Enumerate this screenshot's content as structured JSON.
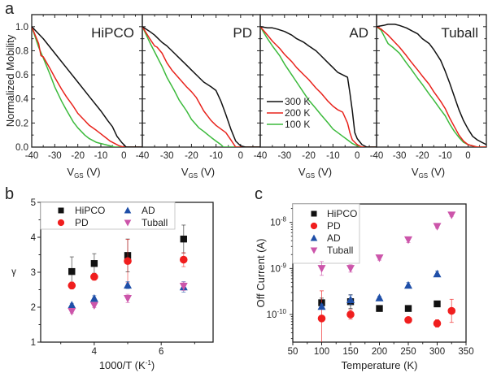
{
  "figure": {
    "panels": [
      "a",
      "b",
      "c"
    ]
  },
  "chart_data": [
    {
      "panel": "a",
      "type": "line",
      "ylabel": "Normalized Mobility",
      "ylim": [
        0,
        1.1
      ],
      "yticks": [
        "0.0",
        "0.2",
        "0.4",
        "0.6",
        "0.8",
        "1.0"
      ],
      "subplots": [
        {
          "title": "HiPCO",
          "xlabel_main": "V",
          "xlabel_sub": "GS",
          "xlabel_unit": "(V)",
          "xlim": [
            -40,
            8
          ],
          "xticks": [
            "-40",
            "-30",
            "-20",
            "-10",
            "0"
          ],
          "series": [
            {
              "name": "300 K",
              "color": "#111111",
              "x": [
                -40,
                -35,
                -30,
                -25,
                -20,
                -15,
                -10,
                -7,
                -5,
                -3,
                -1,
                0,
                1,
                3,
                8
              ],
              "y": [
                1.0,
                0.9,
                0.78,
                0.66,
                0.54,
                0.42,
                0.3,
                0.22,
                0.17,
                0.09,
                0.04,
                0.02,
                0.0,
                0.0,
                0.0
              ]
            },
            {
              "name": "200 K",
              "color": "#e8231c",
              "x": [
                -40,
                -37,
                -36,
                -35,
                -32,
                -30,
                -27,
                -25,
                -22,
                -20,
                -17,
                -15,
                -12,
                -10,
                -8,
                -6,
                -4,
                -2,
                0,
                8
              ],
              "y": [
                1.0,
                0.86,
                0.76,
                0.75,
                0.65,
                0.58,
                0.48,
                0.42,
                0.34,
                0.28,
                0.22,
                0.18,
                0.14,
                0.11,
                0.08,
                0.05,
                0.03,
                0.01,
                0.0,
                0.0
              ]
            },
            {
              "name": "100 K",
              "color": "#3cba3c",
              "x": [
                -40,
                -37,
                -35,
                -32,
                -30,
                -27,
                -25,
                -22,
                -20,
                -17,
                -15,
                -12,
                -10,
                -8,
                -6,
                -4,
                0,
                8
              ],
              "y": [
                1.0,
                0.83,
                0.74,
                0.6,
                0.5,
                0.38,
                0.31,
                0.21,
                0.16,
                0.1,
                0.07,
                0.04,
                0.03,
                0.02,
                0.01,
                0.0,
                0.0,
                0.0
              ]
            }
          ]
        },
        {
          "title": "PD",
          "xlabel_main": "V",
          "xlabel_sub": "GS",
          "xlabel_unit": "(V)",
          "xlim": [
            -40,
            8
          ],
          "xticks": [
            "-40",
            "-30",
            "-20",
            "-10",
            "0"
          ],
          "series": [
            {
              "name": "300 K",
              "color": "#111111",
              "x": [
                -40,
                -37,
                -35,
                -32,
                -30,
                -27,
                -25,
                -22,
                -20,
                -17,
                -15,
                -12,
                -10,
                -8,
                -6,
                -4,
                -2,
                0,
                2,
                8
              ],
              "y": [
                1.0,
                0.96,
                0.93,
                0.87,
                0.84,
                0.78,
                0.74,
                0.68,
                0.64,
                0.58,
                0.54,
                0.5,
                0.47,
                0.38,
                0.27,
                0.15,
                0.05,
                0.01,
                0.0,
                0.0
              ]
            },
            {
              "name": "200 K",
              "color": "#e8231c",
              "x": [
                -40,
                -37,
                -35,
                -34,
                -32,
                -30,
                -28,
                -25,
                -22,
                -20,
                -18,
                -15,
                -12,
                -10,
                -8,
                -6,
                -4,
                -3,
                -2,
                0,
                8
              ],
              "y": [
                1.0,
                0.9,
                0.84,
                0.83,
                0.78,
                0.7,
                0.64,
                0.57,
                0.5,
                0.46,
                0.41,
                0.3,
                0.22,
                0.18,
                0.15,
                0.12,
                0.06,
                0.03,
                0.0,
                0.0,
                0.0
              ]
            },
            {
              "name": "100 K",
              "color": "#3cba3c",
              "x": [
                -40,
                -37,
                -35,
                -32,
                -30,
                -27,
                -25,
                -22,
                -20,
                -17,
                -15,
                -12,
                -10,
                -8,
                -7,
                8
              ],
              "y": [
                1.0,
                0.87,
                0.79,
                0.67,
                0.58,
                0.47,
                0.39,
                0.3,
                0.23,
                0.16,
                0.13,
                0.08,
                0.05,
                0.02,
                0.0,
                0.0
              ]
            }
          ]
        },
        {
          "title": "AD",
          "xlabel_main": "V",
          "xlabel_sub": "GS",
          "xlabel_unit": "(V)",
          "xlim": [
            -40,
            8
          ],
          "xticks": [
            "-40",
            "-30",
            "-20",
            "-10",
            "0"
          ],
          "series": [
            {
              "name": "300 K",
              "color": "#111111",
              "x": [
                -40,
                -37,
                -35,
                -33,
                -30,
                -27,
                -25,
                -22,
                -20,
                -17,
                -15,
                -12,
                -10,
                -8,
                -6,
                -4,
                -3,
                -2,
                -1,
                0,
                2,
                4,
                5,
                8
              ],
              "y": [
                1.0,
                0.99,
                0.99,
                0.98,
                0.96,
                0.93,
                0.9,
                0.87,
                0.84,
                0.8,
                0.76,
                0.7,
                0.66,
                0.62,
                0.6,
                0.58,
                0.45,
                0.3,
                0.12,
                0.07,
                0.02,
                0.0,
                0.0,
                0.0
              ]
            },
            {
              "name": "200 K",
              "color": "#e8231c",
              "x": [
                -40,
                -37,
                -35,
                -32,
                -30,
                -27,
                -25,
                -22,
                -20,
                -17,
                -15,
                -12,
                -10,
                -8,
                -6,
                -4,
                -3,
                -2,
                0,
                2,
                3,
                8
              ],
              "y": [
                1.0,
                0.93,
                0.88,
                0.82,
                0.77,
                0.71,
                0.66,
                0.6,
                0.56,
                0.49,
                0.45,
                0.38,
                0.34,
                0.31,
                0.29,
                0.2,
                0.12,
                0.06,
                0.02,
                0.0,
                0.0,
                0.0
              ]
            },
            {
              "name": "100 K",
              "color": "#3cba3c",
              "x": [
                -40,
                -37,
                -35,
                -32,
                -30,
                -27,
                -25,
                -22,
                -20,
                -17,
                -15,
                -12,
                -10,
                -8,
                -6,
                -4,
                -2,
                0,
                2,
                8
              ],
              "y": [
                1.0,
                0.9,
                0.84,
                0.76,
                0.69,
                0.6,
                0.54,
                0.45,
                0.39,
                0.32,
                0.27,
                0.2,
                0.15,
                0.12,
                0.09,
                0.06,
                0.03,
                0.01,
                0.0,
                0.0
              ]
            }
          ],
          "legend": {
            "position": "lower-left",
            "entries": [
              "300 K",
              "200 K",
              "100 K"
            ]
          }
        },
        {
          "title": "Tuball",
          "xlabel_main": "V",
          "xlabel_sub": "GS",
          "xlabel_unit": "(V)",
          "xlim": [
            -40,
            8
          ],
          "xticks": [
            "-40",
            "-30",
            "-20",
            "-10",
            "0"
          ],
          "series": [
            {
              "name": "300 K",
              "color": "#111111",
              "x": [
                -40,
                -37,
                -35,
                -32,
                -30,
                -27,
                -25,
                -22,
                -20,
                -17,
                -15,
                -12,
                -10,
                -8,
                -6,
                -4,
                -2,
                0,
                2,
                4,
                6,
                8
              ],
              "y": [
                1.0,
                1.01,
                1.02,
                1.02,
                1.01,
                0.99,
                0.97,
                0.94,
                0.9,
                0.86,
                0.81,
                0.72,
                0.63,
                0.53,
                0.42,
                0.31,
                0.22,
                0.15,
                0.09,
                0.06,
                0.04,
                0.02
              ]
            },
            {
              "name": "200 K",
              "color": "#e8231c",
              "x": [
                -40,
                -38,
                -35,
                -32,
                -30,
                -27,
                -25,
                -22,
                -20,
                -17,
                -15,
                -12,
                -10,
                -8,
                -6,
                -4,
                -2,
                0,
                2,
                4,
                6,
                8
              ],
              "y": [
                1.0,
                0.98,
                0.93,
                0.87,
                0.83,
                0.76,
                0.71,
                0.64,
                0.59,
                0.52,
                0.46,
                0.38,
                0.32,
                0.24,
                0.17,
                0.1,
                0.05,
                0.02,
                0.01,
                0.0,
                0.0,
                0.0
              ]
            },
            {
              "name": "100 K",
              "color": "#3cba3c",
              "x": [
                -40,
                -38,
                -35,
                -33,
                -30,
                -27,
                -25,
                -22,
                -20,
                -17,
                -15,
                -12,
                -10,
                -8,
                -6,
                -4,
                -2,
                0,
                2,
                4,
                6,
                8
              ],
              "y": [
                1.0,
                0.97,
                0.86,
                0.83,
                0.78,
                0.7,
                0.65,
                0.57,
                0.52,
                0.44,
                0.39,
                0.31,
                0.26,
                0.19,
                0.13,
                0.08,
                0.04,
                0.02,
                0.01,
                0.0,
                0.0,
                0.0
              ]
            }
          ]
        }
      ]
    },
    {
      "panel": "b",
      "type": "scatter",
      "xlabel": "1000/T (K",
      "xlabel_sup": "-1",
      "xlabel_close": ")",
      "ylabel": "γ",
      "xlim": [
        2.4,
        7.55
      ],
      "ylim": [
        1,
        5
      ],
      "xticks": [
        "4",
        "6"
      ],
      "xtick_values": [
        4,
        6
      ],
      "yticks": [
        "1",
        "2",
        "3",
        "4",
        "5"
      ],
      "legend": {
        "position": "top",
        "columns": 2
      },
      "series": [
        {
          "name": "HiPCO",
          "marker": "square",
          "color": "#111111",
          "x": [
            3.33,
            4.0,
            5.0,
            6.67
          ],
          "y": [
            3.02,
            3.25,
            3.48,
            3.95
          ],
          "err": [
            0.42,
            0.28,
            0.47,
            0.4
          ]
        },
        {
          "name": "PD",
          "marker": "circle",
          "color": "#f01e1e",
          "x": [
            3.33,
            4.0,
            5.0,
            6.67
          ],
          "y": [
            2.62,
            2.87,
            3.32,
            3.36
          ],
          "err": [
            0.1,
            0.1,
            0.62,
            0.2
          ]
        },
        {
          "name": "AD",
          "marker": "triangle-up",
          "color": "#1f4fa8",
          "x": [
            3.33,
            4.0,
            5.0,
            6.67
          ],
          "y": [
            2.06,
            2.25,
            2.63,
            2.58
          ],
          "err": [
            0.05,
            0.08,
            0.1,
            0.15
          ]
        },
        {
          "name": "Tuball",
          "marker": "triangle-down",
          "color": "#cc55aa",
          "x": [
            3.33,
            4.0,
            5.0,
            6.67
          ],
          "y": [
            1.88,
            2.05,
            2.25,
            2.6
          ],
          "err": [
            0.05,
            0.06,
            0.12,
            0.12
          ]
        }
      ]
    },
    {
      "panel": "c",
      "type": "scatter",
      "xlabel": "Temperature (K)",
      "ylabel": "Off Current (A)",
      "xlim": [
        50,
        350
      ],
      "ylim_log10": [
        -10.6,
        -7.6
      ],
      "xticks": [
        "50",
        "100",
        "150",
        "200",
        "250",
        "300",
        "350"
      ],
      "xtick_values": [
        50,
        100,
        150,
        200,
        250,
        300,
        350
      ],
      "yticks": [
        {
          "base": "10",
          "exp": "-10",
          "value": -10
        },
        {
          "base": "10",
          "exp": "-9",
          "value": -9
        },
        {
          "base": "10",
          "exp": "-8",
          "value": -8
        }
      ],
      "yscale": "log",
      "legend": {
        "position": "top-left",
        "columns": 1
      },
      "series": [
        {
          "name": "HiPCO",
          "marker": "square",
          "color": "#111111",
          "x": [
            100,
            150,
            200,
            250,
            300
          ],
          "y": [
            1.8e-10,
            1.9e-10,
            1.35e-10,
            1.35e-10,
            1.7e-10
          ],
          "err_log": [
            0.1,
            0.15,
            0,
            0,
            0
          ]
        },
        {
          "name": "PD",
          "marker": "circle",
          "color": "#f01e1e",
          "x": [
            100,
            150,
            200,
            250,
            300,
            325
          ],
          "y": [
            8.2e-11,
            1e-10,
            null,
            7.6e-11,
            6.4e-11,
            1.2e-10
          ],
          "err_log": [
            0.6,
            0.1,
            0,
            0.05,
            0.08,
            0.25
          ]
        },
        {
          "name": "AD",
          "marker": "triangle-up",
          "color": "#1f4fa8",
          "x": [
            100,
            150,
            200,
            250,
            300
          ],
          "y": [
            1.5e-10,
            2.1e-10,
            2.3e-10,
            4.3e-10,
            7.6e-10
          ],
          "err_log": [
            0.05,
            0.1,
            0.03,
            0.06,
            0.06
          ]
        },
        {
          "name": "Tuball",
          "marker": "triangle-down",
          "color": "#cc55aa",
          "x": [
            100,
            150,
            200,
            250,
            300,
            325
          ],
          "y": [
            1e-09,
            1e-09,
            1.7e-09,
            4.2e-09,
            8.2e-09,
            1.45e-08
          ],
          "err_log": [
            0.15,
            0.08,
            0.05,
            0.06,
            0.04,
            0.03
          ]
        }
      ]
    }
  ]
}
